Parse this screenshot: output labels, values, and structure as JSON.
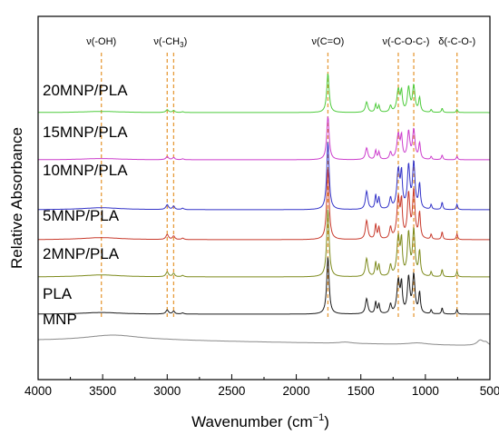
{
  "chart_data": {
    "type": "line",
    "xlabel": "Wavenumber (cm",
    "xlabel_sup": "−1",
    "xlabel_close": ")",
    "ylabel": "Relative Absorbance",
    "xlim": [
      4000,
      500
    ],
    "x_reversed": true,
    "grid": false,
    "legend": "none",
    "x_ticks": [
      "4000",
      "3500",
      "3000",
      "2500",
      "2000",
      "1500",
      "1000",
      "500"
    ],
    "annotations": [
      {
        "label": "ν(-OH)",
        "at": [
          3510
        ],
        "color": "#e69b3a"
      },
      {
        "label": "ν(-CH",
        "sub": "3",
        "close": ")",
        "at": [
          3000,
          2950
        ],
        "color": "#e69b3a"
      },
      {
        "label": "ν(C=O)",
        "at": [
          1755
        ],
        "color": "#e69b3a"
      },
      {
        "label": "ν(-C-O-C-)",
        "at": [
          1210,
          1090
        ],
        "color": "#e69b3a"
      },
      {
        "label": "δ(-C-O-)",
        "at": [
          755
        ],
        "color": "#e69b3a"
      }
    ],
    "series": [
      {
        "name": "20MNP/PLA",
        "color": "#4ecb3c",
        "profile": "pla",
        "scale": 0.72
      },
      {
        "name": "15MNP/PLA",
        "color": "#cc3dcc",
        "profile": "pla",
        "scale": 0.8
      },
      {
        "name": "10MNP/PLA",
        "color": "#3333c8",
        "profile": "pla",
        "scale": 1.25
      },
      {
        "name": "5MNP/PLA",
        "color": "#c83a2c",
        "profile": "pla",
        "scale": 1.3
      },
      {
        "name": "2MNP/PLA",
        "color": "#7d8a1c",
        "profile": "pla",
        "scale": 1.25
      },
      {
        "name": "PLA",
        "color": "#1a1a1a",
        "profile": "pla",
        "scale": 1.05
      },
      {
        "name": "MNP",
        "color": "#8a8a8a",
        "profile": "mnp",
        "scale": 1.0
      }
    ]
  }
}
